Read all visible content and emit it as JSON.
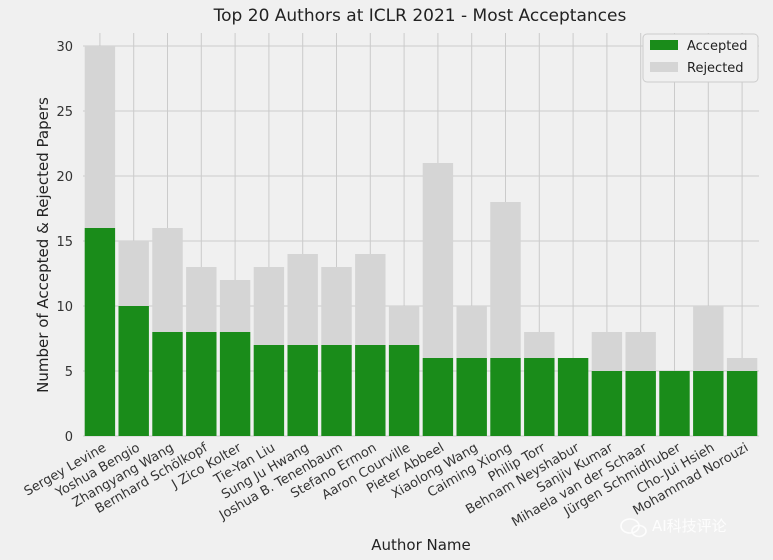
{
  "chart_data": {
    "type": "bar",
    "stacked": true,
    "title": "Top 20 Authors at ICLR 2021 - Most Acceptances",
    "xlabel": "Author Name",
    "ylabel": "Number of Accepted & Rejected Papers",
    "ylim": [
      0,
      31
    ],
    "yticks": [
      0,
      5,
      10,
      15,
      20,
      25,
      30
    ],
    "grid": true,
    "legend_position": "top-right",
    "categories": [
      "Sergey Levine",
      "Yoshua Bengio",
      "Zhangyang Wang",
      "Bernhard Schölkopf",
      "J Zico Kolter",
      "Tie-Yan Liu",
      "Sung Ju Hwang",
      "Joshua B. Tenenbaum",
      "Stefano Ermon",
      "Aaron Courville",
      "Pieter Abbeel",
      "Xiaolong Wang",
      "Caiming Xiong",
      "Philip Torr",
      "Behnam Neyshabur",
      "Sanjiv Kumar",
      "Mihaela van der Schaar",
      "Jürgen Schmidhuber",
      "Cho-Jui Hsieh",
      "Mohammad Norouzi"
    ],
    "series": [
      {
        "name": "Accepted",
        "color": "#1a8c1a",
        "values": [
          16,
          10,
          8,
          8,
          8,
          7,
          7,
          7,
          7,
          7,
          6,
          6,
          6,
          6,
          6,
          5,
          5,
          5,
          5,
          5
        ]
      },
      {
        "name": "Rejected",
        "color": "#d5d5d5",
        "values": [
          14,
          5,
          8,
          5,
          4,
          6,
          7,
          6,
          7,
          3,
          15,
          4,
          12,
          2,
          0,
          3,
          3,
          0,
          5,
          1
        ]
      }
    ]
  },
  "watermark": {
    "text": "AI科技评论",
    "icon": "wechat-icon"
  },
  "colors": {
    "background": "#f0f0f0",
    "grid": "#cbcbcb"
  }
}
